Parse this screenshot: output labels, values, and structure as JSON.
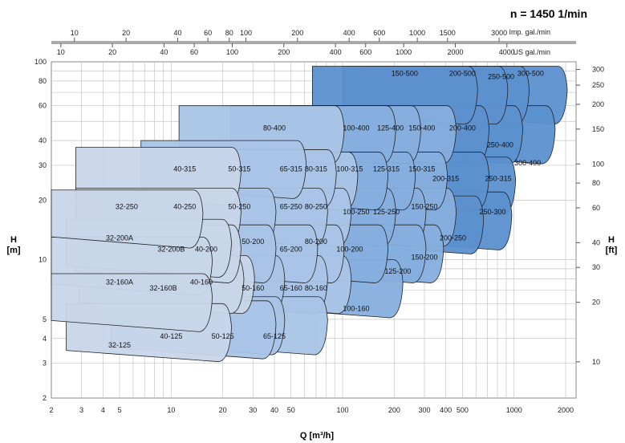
{
  "title": "n = 1450 1/min",
  "chart_data": {
    "type": "area",
    "title": "n = 1450 1/min",
    "xlabel": "Q [m³/h]",
    "ylabel_left": "H\n[m]",
    "ylabel_right": "H\n[ft]",
    "x_scale": "log",
    "y_scale": "log",
    "xlim": [
      2,
      2300
    ],
    "ylim": [
      2,
      100
    ],
    "x_ticks": [
      "2",
      "3",
      "4",
      "5",
      "10",
      "20",
      "30",
      "40",
      "50",
      "100",
      "200",
      "300",
      "400",
      "500",
      "1000",
      "2000"
    ],
    "y_ticks": [
      "2",
      "3",
      "4",
      "5",
      "10",
      "20",
      "30",
      "40",
      "60",
      "80",
      "100"
    ],
    "right_ticks": [
      "10",
      "20",
      "30",
      "40",
      "60",
      "80",
      "100",
      "150",
      "200",
      "250",
      "300"
    ],
    "top_axis_imp": {
      "unit": "Imp. gal./min",
      "ticks": [
        "10",
        "20",
        "40",
        "60",
        "80",
        "100",
        "200",
        "400",
        "600",
        "1000",
        "1500",
        "3000"
      ]
    },
    "top_axis_us": {
      "unit": "US gal./min",
      "ticks": [
        "10",
        "20",
        "40",
        "60",
        "100",
        "200",
        "400",
        "600",
        "1000",
        "2000",
        "4000"
      ]
    },
    "series": [
      {
        "name": "32-125",
        "q_max": 40,
        "h_max": 6.2,
        "label_q": 5,
        "label_h": 3.6
      },
      {
        "name": "32-160A",
        "q_max": 30,
        "h_max": 10.5,
        "label_q": 5,
        "label_h": 7.5
      },
      {
        "name": "32-200A",
        "q_max": 22,
        "h_max": 16,
        "label_q": 5,
        "label_h": 12.5
      },
      {
        "name": "32-250",
        "q_max": 15,
        "h_max": 22.5,
        "label_q": 5.5,
        "label_h": 18
      },
      {
        "name": "40-315",
        "q_max": 25,
        "h_max": 37,
        "label_q": 12,
        "label_h": 28
      },
      {
        "name": "32-200B",
        "q_max": 17,
        "h_max": 13,
        "label_q": 10,
        "label_h": 11
      },
      {
        "name": "32-160B",
        "q_max": 17,
        "h_max": 8.5,
        "label_q": 9,
        "label_h": 7
      },
      {
        "name": "40-125",
        "q_max": 22,
        "h_max": 6,
        "label_q": 10,
        "label_h": 4
      },
      {
        "name": "40-250",
        "q_max": 25,
        "h_max": 23,
        "label_q": 12,
        "label_h": 18
      },
      {
        "name": "40-200",
        "q_max": 25,
        "h_max": 15,
        "label_q": 16,
        "label_h": 11
      },
      {
        "name": "40-160",
        "q_max": 26,
        "h_max": 10.5,
        "label_q": 15,
        "label_h": 7.5
      },
      {
        "name": "50-315",
        "q_max": 60,
        "h_max": 40,
        "label_q": 25,
        "label_h": 28
      },
      {
        "name": "50-250",
        "q_max": 40,
        "h_max": 23,
        "label_q": 25,
        "label_h": 18
      },
      {
        "name": "50-200",
        "q_max": 40,
        "h_max": 15,
        "label_q": 30,
        "label_h": 12
      },
      {
        "name": "50-160",
        "q_max": 45,
        "h_max": 10.5,
        "label_q": 30,
        "label_h": 7
      },
      {
        "name": "50-125",
        "q_max": 45,
        "h_max": 6.5,
        "label_q": 20,
        "label_h": 4
      },
      {
        "name": "80-400",
        "q_max": 100,
        "h_max": 60,
        "label_q": 40,
        "label_h": 45
      },
      {
        "name": "65-315",
        "q_max": 90,
        "h_max": 36,
        "label_q": 50,
        "label_h": 28
      },
      {
        "name": "65-250",
        "q_max": 80,
        "h_max": 23,
        "label_q": 50,
        "label_h": 18
      },
      {
        "name": "65-200",
        "q_max": 70,
        "h_max": 15,
        "label_q": 50,
        "label_h": 11
      },
      {
        "name": "65-160",
        "q_max": 80,
        "h_max": 10.5,
        "label_q": 50,
        "label_h": 7
      },
      {
        "name": "65-125",
        "q_max": 80,
        "h_max": 6.5,
        "label_q": 40,
        "label_h": 4
      },
      {
        "name": "80-315",
        "q_max": 120,
        "h_max": 35,
        "label_q": 70,
        "label_h": 28
      },
      {
        "name": "80-250",
        "q_max": 110,
        "h_max": 23,
        "label_q": 70,
        "label_h": 18
      },
      {
        "name": "80-200",
        "q_max": 100,
        "h_max": 15,
        "label_q": 70,
        "label_h": 12
      },
      {
        "name": "80-160",
        "q_max": 110,
        "h_max": 10.5,
        "label_q": 70,
        "label_h": 7
      },
      {
        "name": "100-400",
        "q_max": 200,
        "h_max": 60,
        "label_q": 120,
        "label_h": 45
      },
      {
        "name": "100-315",
        "q_max": 180,
        "h_max": 35,
        "label_q": 110,
        "label_h": 28
      },
      {
        "name": "100-250",
        "q_max": 200,
        "h_max": 23,
        "label_q": 120,
        "label_h": 17
      },
      {
        "name": "100-200",
        "q_max": 180,
        "h_max": 15,
        "label_q": 110,
        "label_h": 11
      },
      {
        "name": "100-160",
        "q_max": 220,
        "h_max": 10,
        "label_q": 120,
        "label_h": 5.5
      },
      {
        "name": "125-400",
        "q_max": 280,
        "h_max": 60,
        "label_q": 190,
        "label_h": 45
      },
      {
        "name": "125-315",
        "q_max": 260,
        "h_max": 35,
        "label_q": 180,
        "label_h": 28
      },
      {
        "name": "125-250",
        "q_max": 300,
        "h_max": 23,
        "label_q": 180,
        "label_h": 17
      },
      {
        "name": "125-200",
        "q_max": 300,
        "h_max": 15,
        "label_q": 210,
        "label_h": 8.5
      },
      {
        "name": "150-500",
        "q_max": 600,
        "h_max": 95,
        "label_q": 230,
        "label_h": 85
      },
      {
        "name": "150-400",
        "q_max": 450,
        "h_max": 60,
        "label_q": 290,
        "label_h": 45
      },
      {
        "name": "150-315",
        "q_max": 400,
        "h_max": 35,
        "label_q": 290,
        "label_h": 28
      },
      {
        "name": "150-250",
        "q_max": 450,
        "h_max": 23,
        "label_q": 300,
        "label_h": 18
      },
      {
        "name": "150-200",
        "q_max": 380,
        "h_max": 15,
        "label_q": 300,
        "label_h": 10
      },
      {
        "name": "200-500",
        "q_max": 900,
        "h_max": 95,
        "label_q": 500,
        "label_h": 85
      },
      {
        "name": "200-400",
        "q_max": 700,
        "h_max": 60,
        "label_q": 500,
        "label_h": 45
      },
      {
        "name": "200-315",
        "q_max": 700,
        "h_max": 35,
        "label_q": 400,
        "label_h": 25
      },
      {
        "name": "200-250",
        "q_max": 650,
        "h_max": 21,
        "label_q": 440,
        "label_h": 12.5
      },
      {
        "name": "250-500",
        "q_max": 1200,
        "h_max": 95,
        "label_q": 840,
        "label_h": 82
      },
      {
        "name": "250-400",
        "q_max": 1100,
        "h_max": 60,
        "label_q": 830,
        "label_h": 37
      },
      {
        "name": "250-315",
        "q_max": 1000,
        "h_max": 33,
        "label_q": 810,
        "label_h": 25
      },
      {
        "name": "250-300",
        "q_max": 950,
        "h_max": 22,
        "label_q": 750,
        "label_h": 17
      },
      {
        "name": "300-500",
        "q_max": 2000,
        "h_max": 95,
        "label_q": 1250,
        "label_h": 85
      },
      {
        "name": "300-400",
        "q_max": 1700,
        "h_max": 60,
        "label_q": 1200,
        "label_h": 30
      }
    ],
    "fill_colors": [
      "#e4e8f2",
      "#c8d6ea",
      "#a9c4e6",
      "#86aedd",
      "#5c90cf"
    ],
    "legend": "none",
    "grid": true
  }
}
